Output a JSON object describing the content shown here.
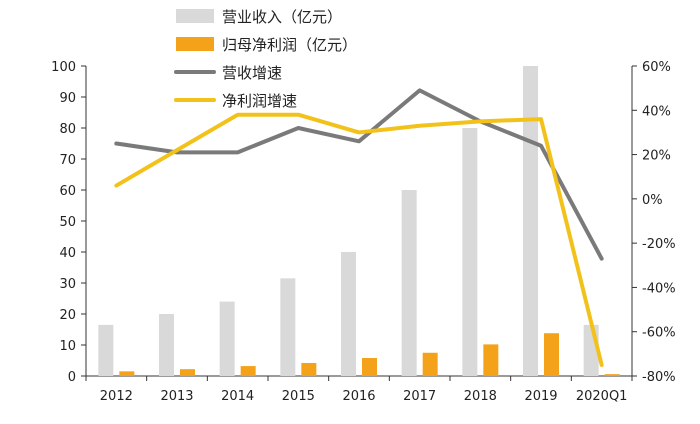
{
  "chart_data": {
    "type": "bar",
    "categories": [
      "2012",
      "2013",
      "2014",
      "2015",
      "2016",
      "2017",
      "2018",
      "2019",
      "2020Q1"
    ],
    "series": [
      {
        "name": "营业收入（亿元）",
        "type": "bar",
        "axis": "left",
        "color": "#d9d9d9",
        "values": [
          16.5,
          20,
          24,
          31.5,
          40,
          60,
          80,
          100,
          16.5
        ]
      },
      {
        "name": "归母净利润（亿元）",
        "type": "bar",
        "axis": "left",
        "color": "#f5a21b",
        "values": [
          1.5,
          2.2,
          3.2,
          4.2,
          5.8,
          7.5,
          10.2,
          13.8,
          0.6
        ]
      },
      {
        "name": "营收增速",
        "type": "line",
        "axis": "right",
        "color": "#7a7a7a",
        "values": [
          25,
          21,
          21,
          32,
          26,
          49,
          35,
          24,
          -27
        ]
      },
      {
        "name": "净利润增速",
        "type": "line",
        "axis": "right",
        "color": "#f2c21b",
        "values": [
          6,
          22,
          38,
          38,
          30,
          33,
          35,
          36,
          -75
        ]
      }
    ],
    "y_left": {
      "range": [
        0,
        100
      ],
      "ticks": [
        0,
        10,
        20,
        30,
        40,
        50,
        60,
        70,
        80,
        90,
        100
      ]
    },
    "y_right": {
      "range": [
        -80,
        60
      ],
      "ticks": [
        -80,
        -60,
        -40,
        -20,
        0,
        20,
        40,
        60
      ],
      "tick_labels": [
        "-80%",
        "-60%",
        "-40%",
        "-20%",
        "0%",
        "20%",
        "40%",
        "60%"
      ]
    },
    "legend_position": "top-left",
    "grid": false,
    "title": "",
    "xlabel": "",
    "ylabel": ""
  }
}
